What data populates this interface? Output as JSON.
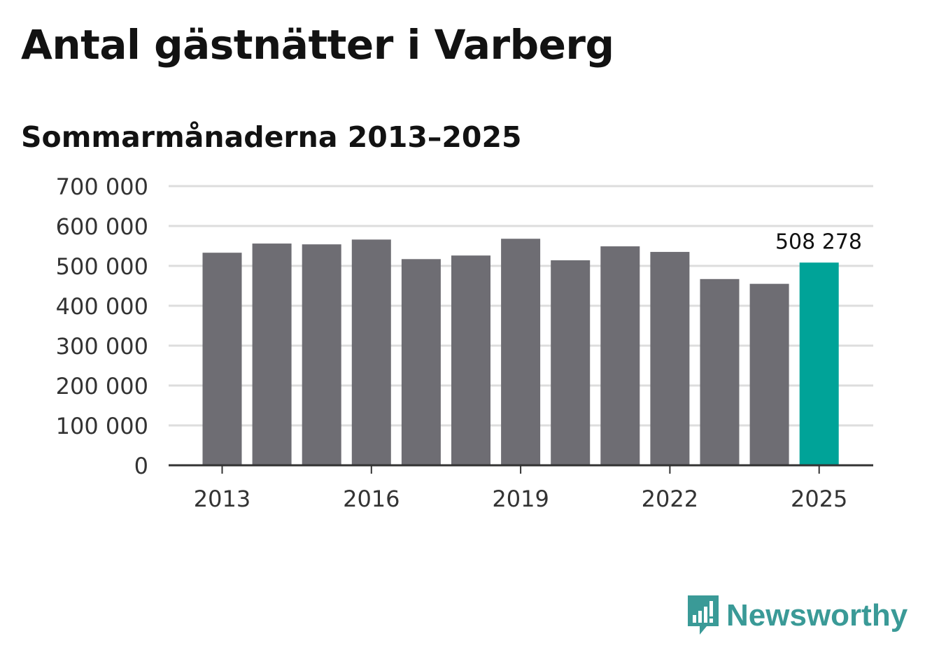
{
  "title": "Antal gästnätter i Varberg",
  "subtitle": "Sommarmånaderna 2013–2025",
  "logo_text": "Newsworthy",
  "chart_data": {
    "type": "bar",
    "categories": [
      "2013",
      "2014",
      "2015",
      "2016",
      "2017",
      "2018",
      "2019",
      "2020",
      "2021",
      "2022",
      "2023",
      "2024",
      "2025"
    ],
    "values": [
      533000,
      556000,
      554000,
      566000,
      517000,
      526000,
      568000,
      514000,
      549000,
      535000,
      467000,
      455000,
      508278
    ],
    "ylim": [
      0,
      700000
    ],
    "yticks": [
      0,
      100000,
      200000,
      300000,
      400000,
      500000,
      600000,
      700000
    ],
    "ytick_labels": [
      "0",
      "100 000",
      "200 000",
      "300 000",
      "400 000",
      "500 000",
      "600 000",
      "700 000"
    ],
    "xtick_labels": [
      "2013",
      "2016",
      "2019",
      "2022",
      "2025"
    ],
    "xtick_categories": [
      "2013",
      "2016",
      "2019",
      "2022",
      "2025"
    ],
    "highlight_category": "2025",
    "highlight_label": "508 278",
    "grid": true,
    "colors": {
      "bar": "#6e6d73",
      "highlight": "#00a398",
      "grid": "#dddddd",
      "axis": "#333333"
    }
  }
}
